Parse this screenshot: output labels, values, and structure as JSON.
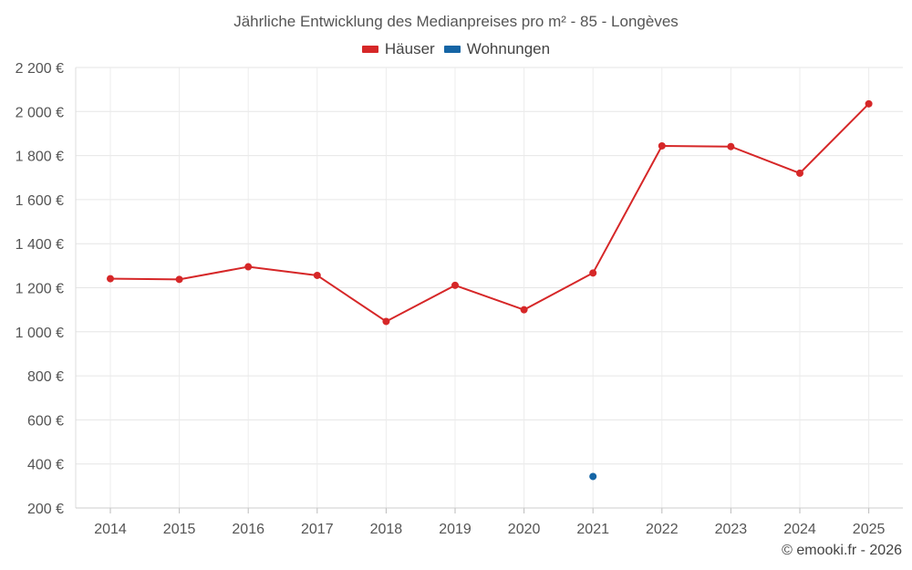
{
  "chart_data": {
    "type": "line",
    "title": "Jährliche Entwicklung des Medianpreises pro m² - 85 - Longèves",
    "x": [
      "2014",
      "2015",
      "2016",
      "2017",
      "2018",
      "2019",
      "2020",
      "2021",
      "2022",
      "2023",
      "2024",
      "2025"
    ],
    "series": [
      {
        "name": "Häuser",
        "color": "#d62728",
        "values": [
          1241,
          1238,
          1295,
          1256,
          1047,
          1211,
          1100,
          1267,
          1844,
          1841,
          1720,
          2035
        ]
      },
      {
        "name": "Wohnungen",
        "color": "#1565a5",
        "values": [
          null,
          null,
          null,
          null,
          null,
          null,
          null,
          343,
          null,
          null,
          null,
          null
        ]
      }
    ],
    "ylim": [
      200,
      2200
    ],
    "yticks": [
      200,
      400,
      600,
      800,
      1000,
      1200,
      1400,
      1600,
      1800,
      2000,
      2200
    ],
    "ytick_labels": [
      "200 €",
      "400 €",
      "600 €",
      "800 €",
      "1 000 €",
      "1 200 €",
      "1 400 €",
      "1 600 €",
      "1 800 €",
      "2 000 €",
      "2 200 €"
    ],
    "grid": true,
    "legend_position": "top-center"
  },
  "credit": "© emooki.fr - 2026"
}
